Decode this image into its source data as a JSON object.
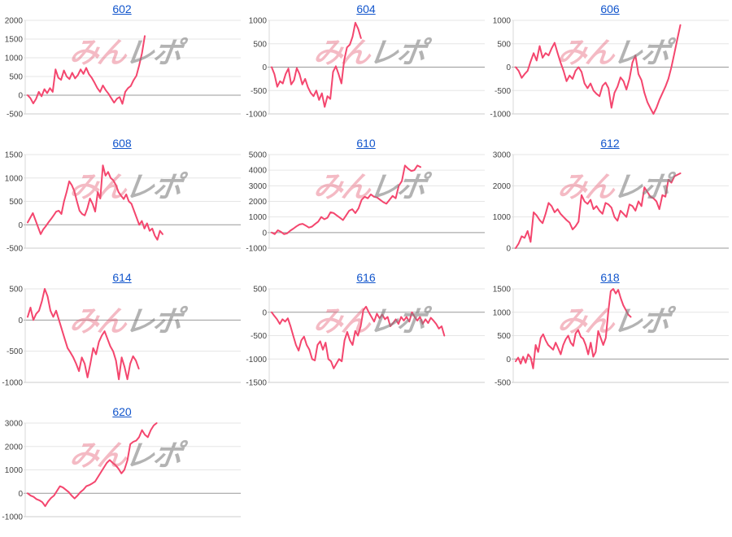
{
  "page": {
    "title_color": "#1155cc",
    "line_color": "#f4466e",
    "grid_color": "#e6e6e6",
    "zero_line_color": "#999999",
    "bottom_line_color": "#cccccc",
    "axis_line_color": "#d9d9d9",
    "label_color": "#444444",
    "background": "#ffffff"
  },
  "watermark": {
    "part1": "みん",
    "part2": "レポ",
    "part1_color": "rgba(228,90,115,0.42)",
    "part2_color": "rgba(128,128,128,0.60)"
  },
  "chart_data": [
    {
      "type": "line",
      "title": "602",
      "legend": "none",
      "grid": "horizontal",
      "yticks": [
        2000,
        1500,
        1000,
        500,
        0,
        -500
      ],
      "end_frac": 0.59,
      "values": [
        0,
        -80,
        -220,
        -100,
        90,
        -30,
        160,
        55,
        190,
        90,
        690,
        465,
        410,
        660,
        500,
        430,
        600,
        450,
        535,
        690,
        570,
        730,
        560,
        465,
        330,
        190,
        90,
        260,
        135,
        40,
        -80,
        -200,
        -95,
        -50,
        -230,
        90,
        190,
        245,
        400,
        520,
        795,
        1115,
        1580
      ]
    },
    {
      "type": "line",
      "title": "604",
      "legend": "none",
      "grid": "horizontal",
      "yticks": [
        1000,
        500,
        0,
        -500,
        -1000
      ],
      "end_frac": 0.45,
      "values": [
        0,
        -150,
        -420,
        -300,
        -350,
        -150,
        -30,
        -370,
        -280,
        -20,
        -150,
        -370,
        -250,
        -430,
        -550,
        -620,
        -500,
        -700,
        -560,
        -850,
        -620,
        -680,
        -100,
        20,
        -150,
        -350,
        150,
        420,
        480,
        650,
        950,
        820,
        620
      ]
    },
    {
      "type": "line",
      "title": "606",
      "legend": "none",
      "grid": "horizontal",
      "yticks": [
        1000,
        500,
        0,
        -500,
        -1000
      ],
      "end_frac": 0.83,
      "values": [
        0,
        -80,
        -230,
        -150,
        -80,
        120,
        300,
        140,
        450,
        200,
        300,
        250,
        400,
        520,
        300,
        100,
        -80,
        -300,
        -180,
        -250,
        -80,
        0,
        -100,
        -350,
        -450,
        -350,
        -500,
        -570,
        -620,
        -400,
        -330,
        -450,
        -870,
        -550,
        -420,
        -220,
        -300,
        -480,
        -250,
        100,
        250,
        -150,
        -280,
        -550,
        -750,
        -880,
        -1000,
        -870,
        -700,
        -560,
        -420,
        -250,
        0,
        300,
        600,
        900
      ]
    },
    {
      "type": "line",
      "title": "608",
      "legend": "none",
      "grid": "horizontal",
      "yticks": [
        1500,
        1000,
        500,
        0,
        -500
      ],
      "end_frac": 0.68,
      "values": [
        50,
        150,
        250,
        100,
        -50,
        -200,
        -100,
        -30,
        50,
        120,
        200,
        280,
        300,
        230,
        500,
        700,
        930,
        850,
        720,
        500,
        300,
        230,
        200,
        350,
        560,
        450,
        280,
        700,
        560,
        1270,
        1050,
        1130,
        1000,
        950,
        850,
        700,
        620,
        550,
        650,
        500,
        450,
        300,
        150,
        0,
        80,
        -80,
        30,
        -130,
        -80,
        -230,
        -320,
        -130,
        -200
      ]
    },
    {
      "type": "line",
      "title": "610",
      "legend": "none",
      "grid": "horizontal",
      "yticks": [
        5000,
        4000,
        3000,
        2000,
        1000,
        0,
        -1000
      ],
      "end_frac": 0.75,
      "values": [
        0,
        -100,
        150,
        50,
        -100,
        -50,
        120,
        250,
        400,
        520,
        560,
        450,
        320,
        380,
        550,
        700,
        1000,
        850,
        950,
        1300,
        1250,
        1100,
        950,
        800,
        1100,
        1400,
        1500,
        1250,
        1550,
        2100,
        2300,
        2200,
        2450,
        2300,
        2250,
        2100,
        1950,
        1850,
        2100,
        2350,
        2200,
        3000,
        3300,
        4300,
        4100,
        3950,
        4000,
        4300,
        4200
      ]
    },
    {
      "type": "line",
      "title": "612",
      "legend": "none",
      "grid": "horizontal",
      "yticks": [
        3000,
        2000,
        1000,
        0
      ],
      "end_frac": 0.83,
      "values": [
        0,
        150,
        380,
        330,
        550,
        200,
        1150,
        1050,
        900,
        800,
        1100,
        1450,
        1350,
        1150,
        1250,
        1100,
        1000,
        900,
        820,
        600,
        700,
        850,
        1700,
        1500,
        1420,
        1550,
        1250,
        1350,
        1200,
        1100,
        1450,
        1400,
        1300,
        1000,
        880,
        1200,
        1100,
        1000,
        1400,
        1350,
        1200,
        1500,
        1350,
        1950,
        1800,
        1650,
        1600,
        1500,
        1250,
        1700,
        1650,
        2200,
        2100,
        2300,
        2350,
        2400
      ]
    },
    {
      "type": "line",
      "title": "614",
      "legend": "none",
      "grid": "horizontal",
      "yticks": [
        500,
        0,
        -500,
        -1000
      ],
      "end_frac": 0.56,
      "values": [
        50,
        200,
        0,
        100,
        150,
        300,
        500,
        380,
        150,
        50,
        150,
        0,
        -150,
        -300,
        -450,
        -520,
        -600,
        -700,
        -820,
        -600,
        -700,
        -920,
        -700,
        -450,
        -550,
        -350,
        -250,
        -180,
        -300,
        -420,
        -500,
        -650,
        -950,
        -600,
        -750,
        -950,
        -700,
        -580,
        -650,
        -780
      ]
    },
    {
      "type": "line",
      "title": "616",
      "legend": "none",
      "grid": "horizontal",
      "yticks": [
        500,
        0,
        -500,
        -1000,
        -1500
      ],
      "end_frac": 0.87,
      "values": [
        0,
        -80,
        -150,
        -250,
        -150,
        -200,
        -130,
        -300,
        -500,
        -700,
        -820,
        -600,
        -520,
        -700,
        -800,
        -1000,
        -1030,
        -700,
        -620,
        -800,
        -650,
        -1000,
        -1050,
        -1200,
        -1100,
        -1000,
        -1050,
        -600,
        -420,
        -600,
        -700,
        -400,
        -500,
        -300,
        50,
        120,
        0,
        -100,
        -200,
        -30,
        -130,
        -50,
        -150,
        -100,
        -300,
        -230,
        -150,
        -250,
        -100,
        -180,
        -100,
        -200,
        0,
        -100,
        -180,
        -100,
        -250,
        -150,
        -230,
        -120,
        -180,
        -250,
        -350,
        -300,
        -500
      ]
    },
    {
      "type": "line",
      "title": "618",
      "legend": "none",
      "grid": "horizontal",
      "yticks": [
        1500,
        1000,
        500,
        0,
        -500
      ],
      "end_frac": 0.58,
      "values": [
        -50,
        30,
        -100,
        50,
        -80,
        100,
        30,
        -200,
        300,
        150,
        450,
        530,
        400,
        300,
        250,
        200,
        350,
        230,
        100,
        300,
        420,
        500,
        350,
        280,
        550,
        620,
        480,
        430,
        300,
        100,
        350,
        50,
        150,
        600,
        450,
        300,
        450,
        1000,
        1450,
        1500,
        1400,
        1480,
        1300,
        1150,
        1050,
        950,
        900
      ]
    },
    {
      "type": "line",
      "title": "620",
      "legend": "none",
      "grid": "horizontal",
      "yticks": [
        3000,
        2000,
        1000,
        0,
        -1000
      ],
      "end_frac": 0.65,
      "values": [
        0,
        -100,
        -150,
        -250,
        -300,
        -380,
        -550,
        -350,
        -200,
        -100,
        100,
        300,
        250,
        150,
        50,
        -100,
        -220,
        -100,
        50,
        150,
        300,
        350,
        420,
        500,
        700,
        900,
        1100,
        1300,
        1420,
        1300,
        1200,
        1050,
        850,
        1000,
        1400,
        2100,
        2200,
        2250,
        2400,
        2700,
        2500,
        2400,
        2700,
        2900,
        3000
      ]
    }
  ]
}
